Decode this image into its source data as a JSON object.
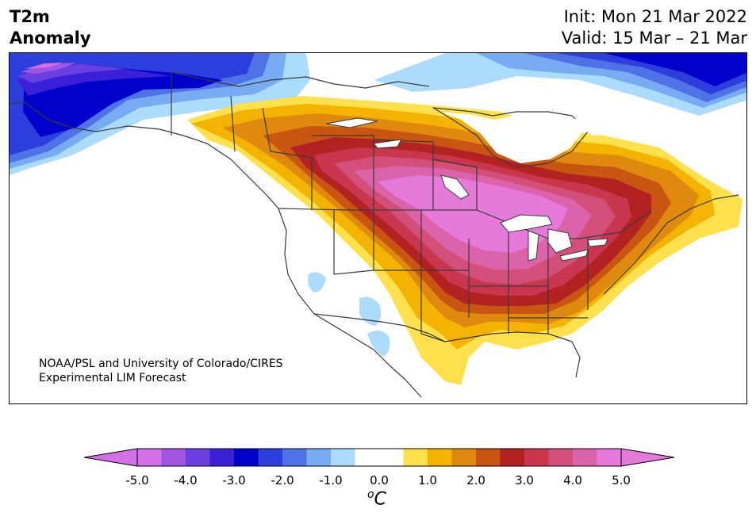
{
  "header": {
    "title_line1": "T2m",
    "title_line2": "Anomaly",
    "init_text": "Init: Mon 21 Mar 2022",
    "valid_text": "Valid: 15 Mar – 21 Mar"
  },
  "credit": {
    "line1": "NOAA/PSL and University of Colorado/CIRES",
    "line2": "Experimental LIM Forecast"
  },
  "colorbar": {
    "unit_symbol": "o",
    "unit_letter": "C",
    "tick_labels": [
      "-5.0",
      "-4.0",
      "-3.0",
      "-2.0",
      "-1.0",
      "0.0",
      "1.0",
      "2.0",
      "3.0",
      "4.0",
      "5.0"
    ],
    "colors": [
      "#d36fe7",
      "#a056e0",
      "#6a3fe0",
      "#3a21d8",
      "#0000cc",
      "#2c3fdc",
      "#4f73e6",
      "#78acf2",
      "#acdcfb",
      "#ffffff",
      "#ffffff",
      "#ffe14d",
      "#f3b300",
      "#df8a0e",
      "#c85512",
      "#b22222",
      "#c9374f",
      "#d14f79",
      "#da63aa",
      "#e57adb"
    ],
    "under_color": "#d36fe7",
    "over_color": "#e57adb"
  },
  "map": {
    "region": "North America",
    "variable": "T2m Anomaly",
    "colors": {
      "pink": "#e57adb",
      "magenta": "#da63aa",
      "rose": "#d14f79",
      "crimson": "#c9374f",
      "red": "#b22222",
      "rust": "#c85512",
      "orange": "#df8a0e",
      "gold": "#f3b300",
      "yellow": "#ffe14d",
      "lightblue": "#acdcfb",
      "skyblue": "#78acf2",
      "mblue": "#4f73e6",
      "blue": "#2c3fdc",
      "navy": "#0000cc",
      "indigo": "#3a21d8",
      "violet": "#6a3fe0",
      "purple": "#a056e0",
      "orchid": "#d36fe7",
      "border": "#3a3a3a"
    }
  }
}
